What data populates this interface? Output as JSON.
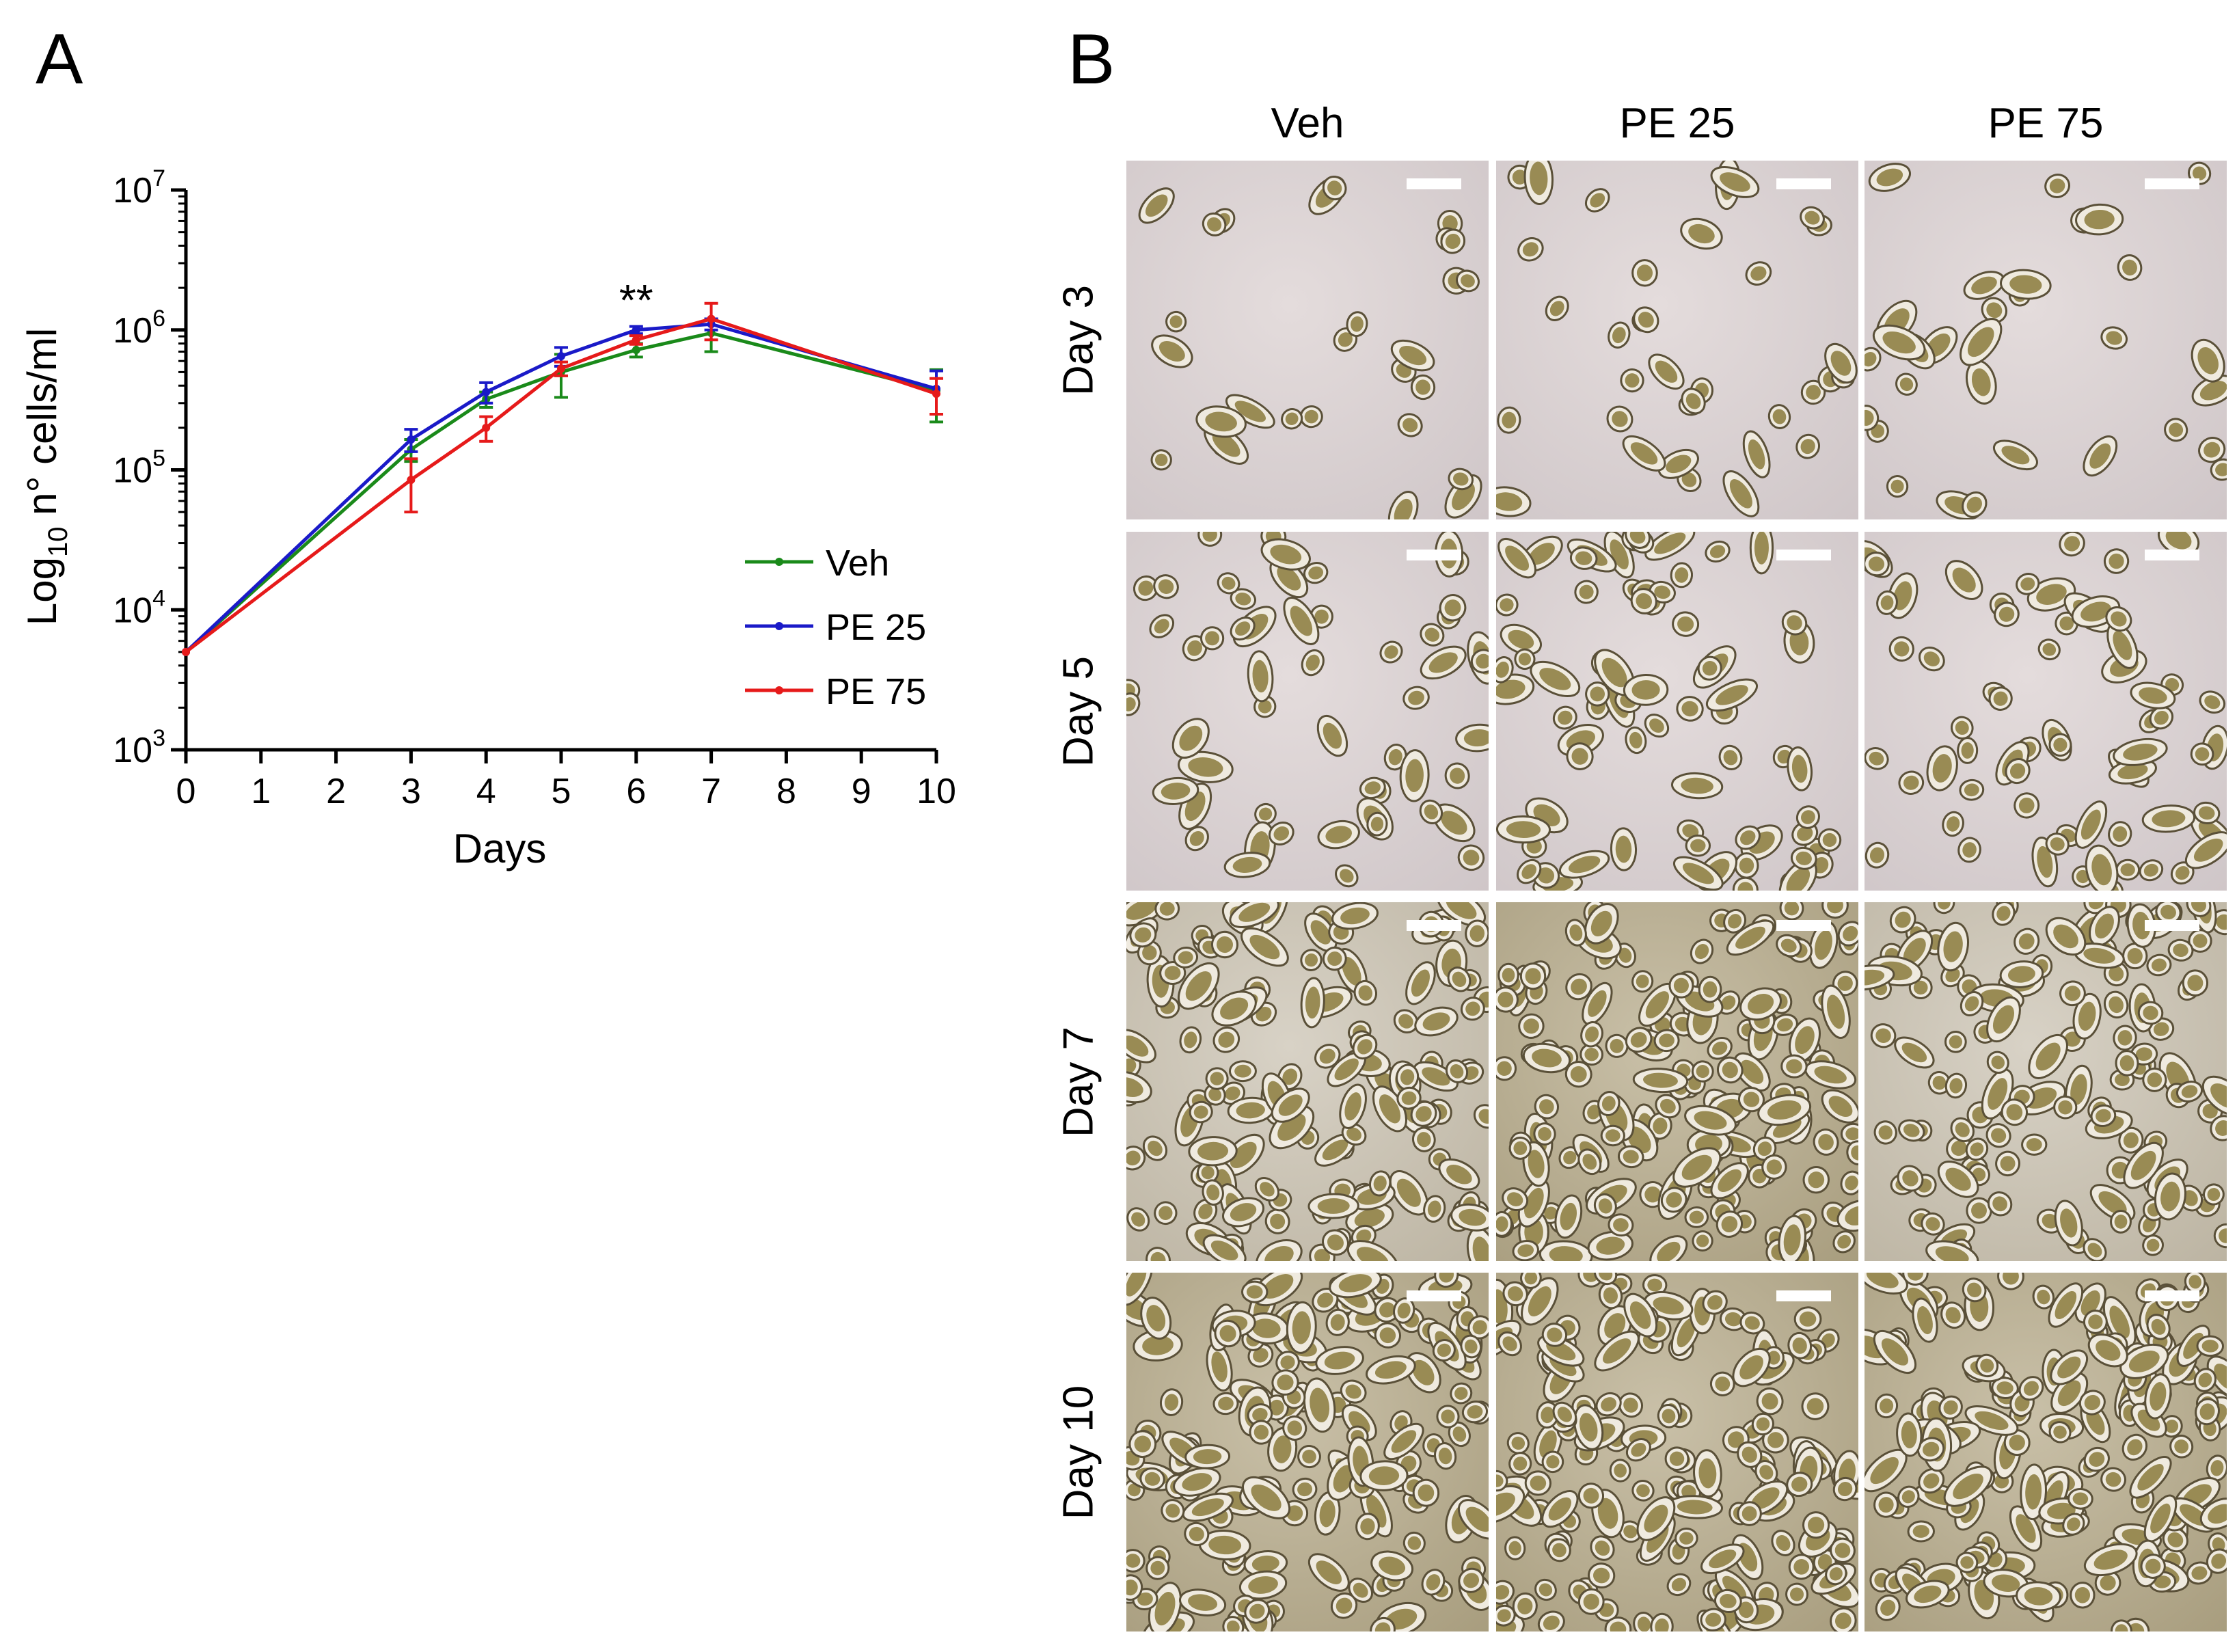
{
  "panel_a": {
    "letter": "A"
  },
  "panel_b": {
    "letter": "B",
    "columns": [
      "Veh",
      "PE 25",
      "PE 75"
    ],
    "rows": [
      "Day 3",
      "Day 5",
      "Day 7",
      "Day 10"
    ],
    "densities": [
      [
        0.12,
        0.16,
        0.14
      ],
      [
        0.3,
        0.42,
        0.36
      ],
      [
        0.85,
        1.0,
        0.78
      ],
      [
        0.95,
        1.0,
        1.0
      ]
    ]
  },
  "chart_data": {
    "type": "line",
    "ylabel_main": "Log",
    "ylabel_sub": "10",
    "ylabel_rest": " n° cells/ml",
    "xlabel": "Days",
    "yscale": "log",
    "ylim": [
      1000,
      10000000
    ],
    "xlim": [
      0,
      10
    ],
    "xticks": [
      0,
      1,
      2,
      3,
      4,
      5,
      6,
      7,
      8,
      9,
      10
    ],
    "yticks": [
      {
        "value": 1000,
        "base": "10",
        "exp": "3"
      },
      {
        "value": 10000,
        "base": "10",
        "exp": "4"
      },
      {
        "value": 100000,
        "base": "10",
        "exp": "5"
      },
      {
        "value": 1000000,
        "base": "10",
        "exp": "6"
      },
      {
        "value": 10000000,
        "base": "10",
        "exp": "7"
      }
    ],
    "x": [
      0,
      3,
      4,
      5,
      6,
      7,
      10
    ],
    "series": [
      {
        "name": "Veh",
        "color": "#1a8a1a",
        "values": [
          5000,
          140000,
          320000,
          500000,
          720000,
          950000,
          370000
        ],
        "err": [
          0,
          25000,
          40000,
          170000,
          80000,
          250000,
          150000
        ]
      },
      {
        "name": "PE 25",
        "color": "#1a1ac8",
        "values": [
          5000,
          165000,
          360000,
          650000,
          1000000,
          1100000,
          380000
        ],
        "err": [
          0,
          30000,
          60000,
          100000,
          60000,
          100000,
          130000
        ]
      },
      {
        "name": "PE 75",
        "color": "#e61a1a",
        "values": [
          5000,
          85000,
          200000,
          530000,
          850000,
          1200000,
          350000
        ],
        "err": [
          0,
          35000,
          40000,
          60000,
          60000,
          350000,
          100000
        ]
      }
    ],
    "annotation": {
      "text": "**",
      "x": 6
    },
    "legend_position": "right-middle",
    "grid": false
  }
}
